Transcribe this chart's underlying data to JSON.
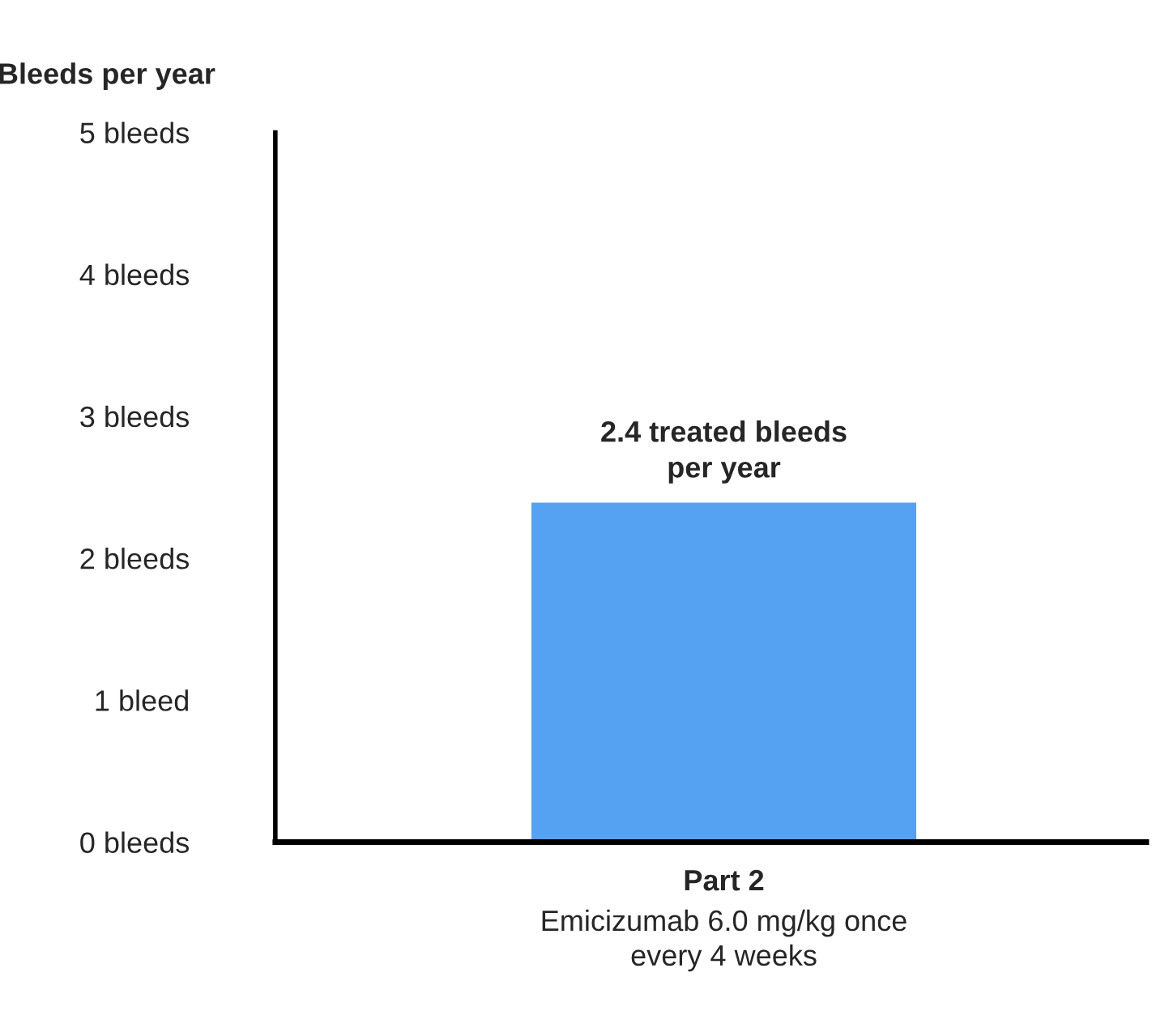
{
  "chart_data": {
    "type": "bar",
    "ylabel": "Bleeds per year",
    "categories": [
      "Part 2"
    ],
    "xlabel": "Emicizumab 6.0 mg/kg once\nevery 4 weeks",
    "values": [
      2.4
    ],
    "value_labels": [
      "2.4 treated bleeds\nper year"
    ],
    "color": "#55a1f2",
    "ylim": [
      0,
      5
    ],
    "yticks": [
      {
        "value": 0,
        "label": "0 bleeds"
      },
      {
        "value": 1,
        "label": "1 bleed"
      },
      {
        "value": 2,
        "label": "2 bleeds"
      },
      {
        "value": 3,
        "label": "3 bleeds"
      },
      {
        "value": 4,
        "label": "4 bleeds"
      },
      {
        "value": 5,
        "label": "5 bleeds"
      }
    ],
    "grid": false,
    "legend": false
  }
}
